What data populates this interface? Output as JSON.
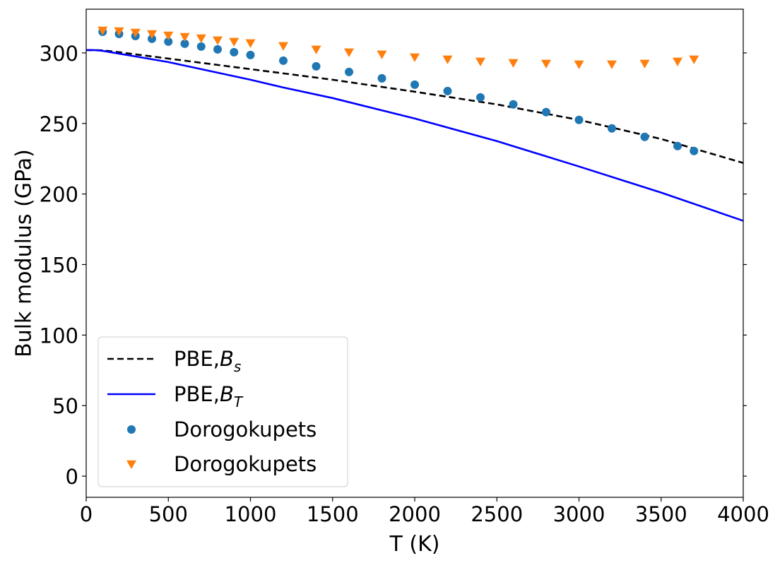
{
  "chart_data": {
    "type": "line",
    "xlabel": "T (K)",
    "ylabel": "Bulk modulus (GPa)",
    "xlim": [
      0,
      4000
    ],
    "ylim": [
      -15,
      331
    ],
    "xticks": [
      0,
      500,
      1000,
      1500,
      2000,
      2500,
      3000,
      3500,
      4000
    ],
    "yticks": [
      0,
      50,
      100,
      150,
      200,
      250,
      300
    ],
    "grid": false,
    "legend_position": "lower-left",
    "series": [
      {
        "name": "PBE,",
        "name_symbol": "B",
        "name_subscript": "s",
        "kind": "line",
        "style": "dashed",
        "color": "#000000",
        "x": [
          0,
          50,
          100,
          200,
          300,
          400,
          500,
          600,
          800,
          1000,
          1200,
          1500,
          2000,
          2500,
          3000,
          3500,
          4000
        ],
        "y": [
          302,
          302,
          301.8,
          300.5,
          299,
          297.5,
          296,
          294.5,
          291.5,
          288.5,
          285.5,
          281,
          272.5,
          263.5,
          252.5,
          239,
          222
        ]
      },
      {
        "name": "PBE,",
        "name_symbol": "B",
        "name_subscript": "T",
        "kind": "line",
        "style": "solid",
        "color": "#0000ff",
        "x": [
          0,
          50,
          100,
          200,
          300,
          400,
          500,
          600,
          800,
          1000,
          1200,
          1500,
          2000,
          2500,
          3000,
          3500,
          4000
        ],
        "y": [
          302,
          302,
          301.5,
          299.5,
          297.5,
          295.5,
          293.5,
          291,
          286,
          281,
          275.5,
          268,
          253.5,
          237.5,
          219.5,
          201,
          181
        ]
      },
      {
        "name": "Dorogokupets",
        "kind": "scatter",
        "marker": "circle",
        "color": "#1f77b4",
        "x": [
          100,
          200,
          300,
          400,
          500,
          600,
          700,
          800,
          900,
          1000,
          1200,
          1400,
          1600,
          1800,
          2000,
          2200,
          2400,
          2600,
          2800,
          3000,
          3200,
          3400,
          3600,
          3700
        ],
        "y": [
          315,
          313.5,
          312,
          310,
          308,
          306.5,
          304.5,
          302.5,
          300.5,
          298.5,
          294.5,
          290.5,
          286.5,
          282,
          277.5,
          273,
          268.5,
          263.5,
          258,
          252.5,
          246.5,
          240.5,
          234,
          230.5
        ]
      },
      {
        "name": "Dorogokupets",
        "kind": "scatter",
        "marker": "triangle-down",
        "color": "#ff7f0e",
        "x": [
          100,
          200,
          300,
          400,
          500,
          600,
          700,
          800,
          900,
          1000,
          1200,
          1400,
          1600,
          1800,
          2000,
          2200,
          2400,
          2600,
          2800,
          3000,
          3200,
          3400,
          3600,
          3700
        ],
        "y": [
          316,
          315.5,
          314.5,
          313.5,
          312.5,
          311.5,
          310.5,
          309,
          308,
          307,
          305,
          302.5,
          300.5,
          299,
          297,
          295.5,
          294,
          293,
          292.5,
          292,
          292,
          292.5,
          294,
          295.5
        ]
      }
    ]
  }
}
